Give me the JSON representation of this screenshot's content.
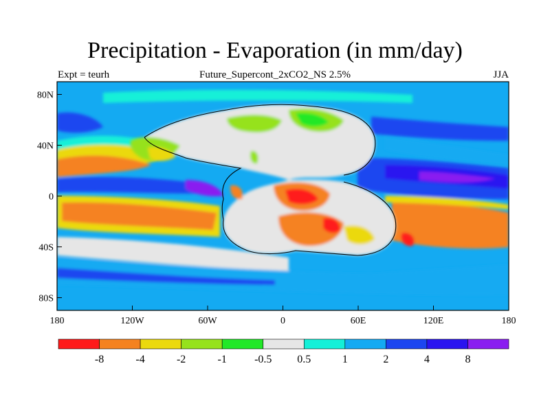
{
  "title": "Precipitation - Evaporation (in mm/day)",
  "subtitle": "Future_Supercont_2xCO2_NS 2.5%",
  "left_label": "Expt = teurh",
  "right_label": "JJA",
  "axes": {
    "lat_ticks": [
      {
        "label": "80N",
        "lat": 80
      },
      {
        "label": "40N",
        "lat": 40
      },
      {
        "label": "0",
        "lat": 0
      },
      {
        "label": "40S",
        "lat": -40
      },
      {
        "label": "80S",
        "lat": -80
      }
    ],
    "lon_ticks": [
      {
        "label": "180",
        "lon": -180
      },
      {
        "label": "120W",
        "lon": -120
      },
      {
        "label": "60W",
        "lon": -60
      },
      {
        "label": "0",
        "lon": 0
      },
      {
        "label": "60E",
        "lon": 60
      },
      {
        "label": "120E",
        "lon": 120
      },
      {
        "label": "180",
        "lon": 180
      }
    ],
    "lat_range": [
      -90,
      90
    ],
    "lon_range": [
      -180,
      180
    ]
  },
  "colorbar": {
    "colors": [
      "#ff1a1a",
      "#f58220",
      "#ebd90e",
      "#96e21c",
      "#22e828",
      "#e6e6e6",
      "#14f0d8",
      "#14aaf2",
      "#1c46f0",
      "#2a14f0",
      "#8a1ef0"
    ],
    "labels": [
      "-8",
      "-4",
      "-2",
      "-1",
      "-0.5",
      "0.5",
      "1",
      "2",
      "4",
      "8"
    ]
  }
}
